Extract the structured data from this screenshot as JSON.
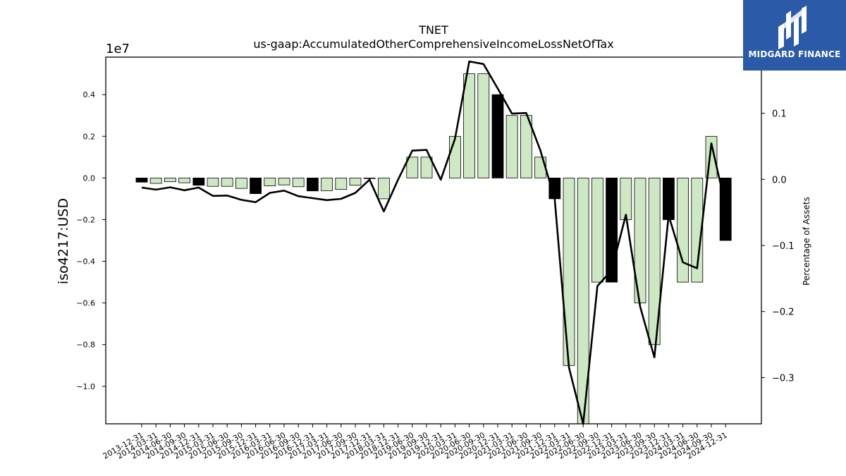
{
  "chart_data": {
    "type": "bar",
    "title": "TNET",
    "subtitle": "us-gaap:AccumulatedOtherComprehensiveIncomeLossNetOfTax",
    "ylabel": "iso4217:USD",
    "y_offset_label": "1e7",
    "y2label": "Percentage of Assets",
    "ylim": [
      -11800000,
      5800000
    ],
    "y2lim": [
      -0.37,
      0.185
    ],
    "yticks": [
      0.4,
      0.2,
      0.0,
      -0.2,
      -0.4,
      -0.6,
      -0.8,
      -1.0
    ],
    "ytick_labels": [
      "0.4",
      "0.2",
      "0.0",
      "−0.2",
      "−0.4",
      "−0.6",
      "−0.8",
      "−1.0"
    ],
    "y2ticks": [
      0.1,
      0.0,
      -0.1,
      -0.2,
      -0.3
    ],
    "y2tick_labels": [
      "0.1",
      "0.0",
      "−0.1",
      "−0.2",
      "−0.3"
    ],
    "categories": [
      "2013-12-31",
      "2014-03-31",
      "2014-06-30",
      "2014-09-30",
      "2014-12-31",
      "2015-03-31",
      "2015-06-30",
      "2015-09-30",
      "2015-12-31",
      "2016-03-31",
      "2016-06-30",
      "2016-09-30",
      "2016-12-31",
      "2017-03-31",
      "2017-06-30",
      "2017-09-30",
      "2017-12-31",
      "2018-03-31",
      "2018-12-31",
      "2019-06-30",
      "2019-09-30",
      "2019-12-31",
      "2020-03-31",
      "2020-06-30",
      "2020-09-30",
      "2020-12-31",
      "2021-03-31",
      "2021-06-30",
      "2021-09-30",
      "2021-12-31",
      "2022-03-31",
      "2022-06-30",
      "2022-09-30",
      "2022-12-31",
      "2023-03-31",
      "2023-06-30",
      "2023-09-30",
      "2023-12-31",
      "2024-03-31",
      "2024-06-30",
      "2024-09-30",
      "2024-12-31"
    ],
    "series": [
      {
        "kind": "bar",
        "values": [
          -200000,
          -260000,
          -180000,
          -230000,
          -350000,
          -400000,
          -400000,
          -500000,
          -750000,
          -380000,
          -330000,
          -420000,
          -620000,
          -610000,
          -550000,
          -350000,
          -20000,
          -1000000,
          0,
          1000000,
          1000000,
          0,
          2000000,
          5000000,
          5000000,
          4000000,
          3000000,
          3000000,
          1000000,
          -1000000,
          -9000000,
          -12000000,
          -5000000,
          -5000000,
          -2000000,
          -6000000,
          -8000000,
          -2000000,
          -5000000,
          -5000000,
          2000000,
          -3000000
        ],
        "quarter_end": [
          true,
          false,
          false,
          false,
          true,
          false,
          false,
          false,
          true,
          false,
          false,
          false,
          true,
          false,
          false,
          false,
          false,
          false,
          true,
          false,
          false,
          true,
          false,
          false,
          false,
          true,
          false,
          false,
          false,
          true,
          false,
          false,
          false,
          true,
          false,
          false,
          false,
          true,
          false,
          false,
          false,
          true
        ]
      },
      {
        "kind": "line",
        "axis": "right",
        "values": [
          -0.0125,
          -0.0155,
          -0.012,
          -0.0165,
          -0.0125,
          -0.025,
          -0.0245,
          -0.031,
          -0.0345,
          -0.0205,
          -0.017,
          -0.0255,
          -0.0285,
          -0.0315,
          -0.0295,
          -0.0205,
          -0.0005,
          -0.0485,
          -0.0005,
          0.0435,
          0.0445,
          -0.0005,
          0.0615,
          0.1785,
          0.1745,
          0.1375,
          0.0995,
          0.1005,
          0.0435,
          -0.0295,
          -0.2845,
          -0.3795,
          -0.1615,
          -0.1375,
          -0.0535,
          -0.1925,
          -0.2695,
          -0.0545,
          -0.1255,
          -0.1345,
          0.0545,
          -0.0405
        ]
      }
    ],
    "colors": {
      "bar_fill": "#cde8c2",
      "bar_quarter_end": "#000000",
      "bar_edge": "#000000",
      "line": "#000000"
    },
    "grid": false,
    "legend": "none"
  },
  "logo": {
    "text": "MIDGARD FINANCE",
    "color": "#2a5aa8"
  }
}
